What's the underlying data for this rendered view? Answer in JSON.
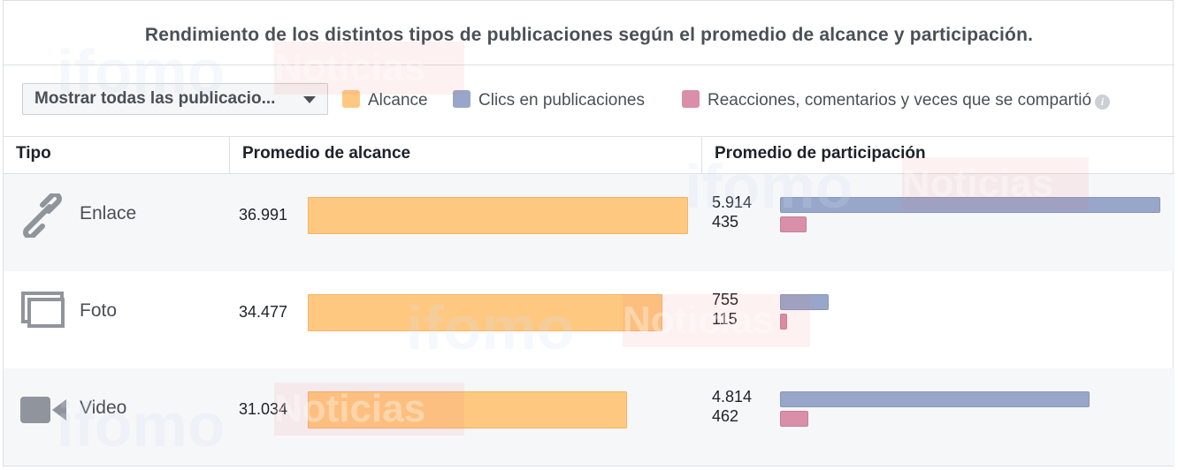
{
  "title": "Rendimiento de los distintos tipos de publicaciones según el promedio de alcance y participación.",
  "filter": {
    "selected": "Mostrar todas las publicacio..."
  },
  "legend": [
    {
      "label": "Alcance",
      "color": "#ffc880"
    },
    {
      "label": "Clics en publicaciones",
      "color": "#98a6c9"
    },
    {
      "label": "Reacciones, comentarios y veces que se compartió",
      "color": "#d88fa7"
    }
  ],
  "columns": {
    "type": "Tipo",
    "reach": "Promedio de alcance",
    "engagement": "Promedio de participación"
  },
  "watermark": {
    "part1": "ifomo",
    "part2": "Noticias"
  },
  "chart_data": {
    "type": "bar",
    "categories": [
      "Enlace",
      "Foto",
      "Video"
    ],
    "icons": [
      "link-icon",
      "photo-icon",
      "video-icon"
    ],
    "series": [
      {
        "name": "Alcance",
        "values": [
          36991,
          34477,
          31034
        ],
        "labels": [
          "36.991",
          "34.477",
          "31.034"
        ]
      },
      {
        "name": "Clics en publicaciones",
        "values": [
          5914,
          755,
          4814
        ],
        "labels": [
          "5.914",
          "755",
          "4.814"
        ]
      },
      {
        "name": "Reacciones, comentarios y veces que se compartió",
        "values": [
          435,
          115,
          462
        ],
        "labels": [
          "435",
          "115",
          "462"
        ]
      }
    ]
  }
}
